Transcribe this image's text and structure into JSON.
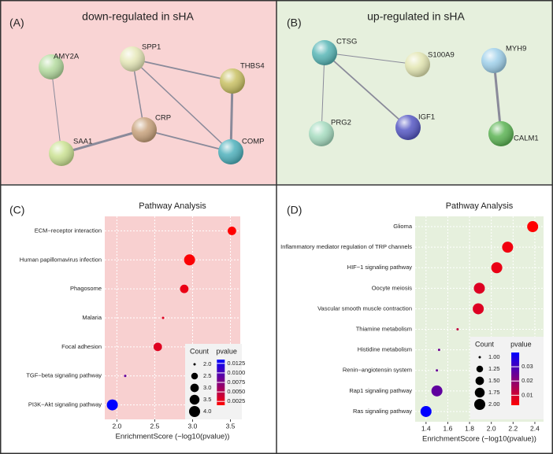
{
  "panels": {
    "a": {
      "tag": "(A)",
      "title": "down-regulated in sHA",
      "nodes": [
        "AMY2A",
        "SPP1",
        "THBS4",
        "CRP",
        "SAA1",
        "COMP"
      ]
    },
    "b": {
      "tag": "(B)",
      "title": "up-regulated in sHA",
      "nodes": [
        "CTSG",
        "S100A9",
        "MYH9",
        "PRG2",
        "IGF1",
        "CALM1"
      ]
    }
  },
  "chart_data": [
    {
      "type": "bubble",
      "tag": "(C)",
      "title": "Pathway Analysis",
      "xlabel": "EnrichmentScore (−log10(pvalue))",
      "categories": [
        "ECM−receptor interaction",
        "Human papillomavirus infection",
        "Phagosome",
        "Malaria",
        "Focal adhesion",
        "TGF−beta signaling pathway",
        "PI3K−Akt signaling pathway"
      ],
      "values": [
        3.52,
        2.96,
        2.89,
        2.61,
        2.54,
        2.11,
        1.94
      ],
      "counts": [
        3,
        4,
        3,
        2,
        3,
        2,
        4
      ],
      "pvalues": [
        0.0015,
        0.0017,
        0.0025,
        0.003,
        0.003,
        0.009,
        0.0135
      ],
      "xlim": [
        1.84,
        3.63
      ],
      "xticks": [
        {
          "value": 2,
          "label": "2.0"
        },
        {
          "value": 2.5,
          "label": "2.5"
        },
        {
          "value": 3,
          "label": "3.0"
        },
        {
          "value": 3.5,
          "label": "3.5"
        }
      ],
      "grid": true,
      "background": "#f8d0d0",
      "size_legend": {
        "title": "Count",
        "ticks": [
          {
            "value": 2,
            "label": "2.0"
          },
          2.5,
          {
            "value": 3,
            "label": "3.0"
          },
          3.5,
          {
            "value": 4,
            "label": "4.0"
          }
        ]
      },
      "size_lim": [
        2,
        4
      ],
      "color_legend": {
        "title": "pvalue",
        "ticks": [
          0.0125,
          {
            "value": 0.01,
            "label": "0.0100"
          },
          0.0075,
          {
            "value": 0.005,
            "label": "0.0050"
          },
          0.0025
        ]
      },
      "pvalue_lim": [
        0.0015,
        0.0135
      ],
      "color_low": "#ff0000",
      "color_high": "#0000ff"
    },
    {
      "type": "bubble",
      "tag": "(D)",
      "title": "Pathway Analysis",
      "xlabel": "EnrichmentScore (−log10(pvalue))",
      "categories": [
        "Glioma",
        "Inflammatory mediator regulation of TRP channels",
        "HIF−1 signaling pathway",
        "Oocyte meiosis",
        "Vascular smooth muscle contraction",
        "Thiamine metabolism",
        "Histidine metabolism",
        "Renin−angiotensin system",
        "Rap1 signaling pathway",
        "Ras signaling pathway"
      ],
      "values": [
        2.38,
        2.15,
        2.05,
        1.89,
        1.88,
        1.69,
        1.52,
        1.5,
        1.5,
        1.4
      ],
      "counts": [
        2,
        2,
        2,
        2,
        2,
        1,
        1,
        1,
        2,
        2
      ],
      "pvalues": [
        0.003,
        0.005,
        0.006,
        0.008,
        0.008,
        0.012,
        0.024,
        0.025,
        0.026,
        0.04
      ],
      "xlim": [
        1.3,
        2.48
      ],
      "xticks": [
        1.4,
        1.6,
        1.8,
        {
          "value": 2,
          "label": "2.0"
        },
        2.2,
        2.4
      ],
      "grid": true,
      "background": "#e6f0dd",
      "size_legend": {
        "title": "Count",
        "ticks": [
          {
            "value": 1,
            "label": "1.00"
          },
          1.25,
          {
            "value": 1.5,
            "label": "1.50"
          },
          1.75,
          {
            "value": 2,
            "label": "2.00"
          }
        ]
      },
      "size_lim": [
        1,
        2
      ],
      "color_legend": {
        "title": "pvalue",
        "ticks": [
          0.03,
          0.02,
          0.01
        ]
      },
      "pvalue_lim": [
        0.003,
        0.04
      ],
      "color_low": "#ff0000",
      "color_high": "#0000ff"
    }
  ]
}
